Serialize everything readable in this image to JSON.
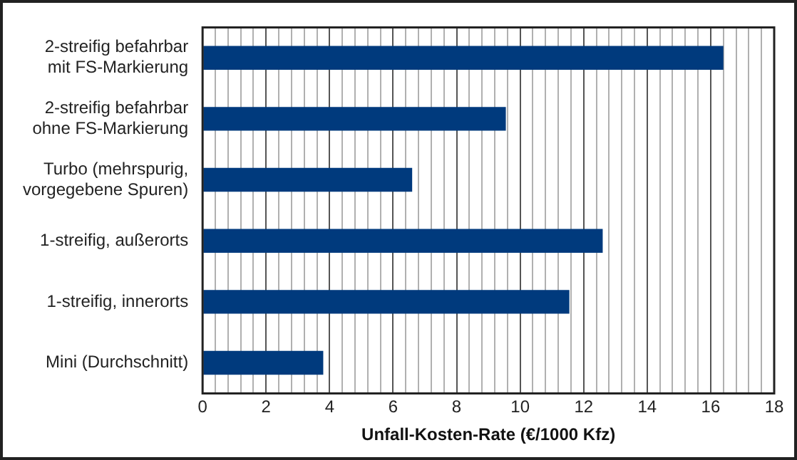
{
  "chart_data": {
    "type": "bar",
    "orientation": "horizontal",
    "xlabel": "Unfall-Kosten-Rate (€/1000 Kfz)",
    "categories": [
      "2-streifig befahrbar mit FS-Markierung",
      "2-streifig befahrbar ohne FS-Markierung",
      "Turbo (mehrspurig, vorgegebene Spuren)",
      "1-streifig, außerorts",
      "1-streifig, innerorts",
      "Mini (Durchschnitt)"
    ],
    "values": [
      16.4,
      9.55,
      6.6,
      12.6,
      11.55,
      3.8
    ],
    "color": "#003a7d",
    "xlim": [
      0,
      18
    ],
    "xticks": [
      0,
      {
        "value": 0.4,
        "label": null
      },
      {
        "value": 0.8,
        "label": null
      },
      {
        "value": 1.2,
        "label": null
      },
      {
        "value": 1.6,
        "label": null
      },
      2,
      {
        "value": 2.4,
        "label": null
      },
      {
        "value": 2.8,
        "label": null
      },
      {
        "value": 3.2,
        "label": null
      },
      {
        "value": 3.6,
        "label": null
      },
      4,
      {
        "value": 4.4,
        "label": null
      },
      {
        "value": 4.8,
        "label": null
      },
      {
        "value": 5.2,
        "label": null
      },
      {
        "value": 5.6,
        "label": null
      },
      6,
      {
        "value": 6.4,
        "label": null
      },
      {
        "value": 6.8,
        "label": null
      },
      {
        "value": 7.2,
        "label": null
      },
      {
        "value": 7.6,
        "label": null
      },
      8,
      {
        "value": 8.4,
        "label": null
      },
      {
        "value": 8.8,
        "label": null
      },
      {
        "value": 9.2,
        "label": null
      },
      {
        "value": 9.6,
        "label": null
      },
      10,
      {
        "value": 10.4,
        "label": null
      },
      {
        "value": 10.8,
        "label": null
      },
      {
        "value": 11.2,
        "label": null
      },
      {
        "value": 11.6,
        "label": null
      },
      12,
      {
        "value": 12.4,
        "label": null
      },
      {
        "value": 12.8,
        "label": null
      },
      {
        "value": 13.2,
        "label": null
      },
      {
        "value": 13.6,
        "label": null
      },
      14,
      {
        "value": 14.4,
        "label": null
      },
      {
        "value": 14.8,
        "label": null
      },
      {
        "value": 15.2,
        "label": null
      },
      {
        "value": 15.6,
        "label": null
      },
      16,
      {
        "value": 16.4,
        "label": null
      },
      {
        "value": 16.8,
        "label": null
      },
      {
        "value": 17.2,
        "label": null
      },
      {
        "value": 17.6,
        "label": null
      },
      18
    ],
    "grid": "x",
    "legend": false
  }
}
